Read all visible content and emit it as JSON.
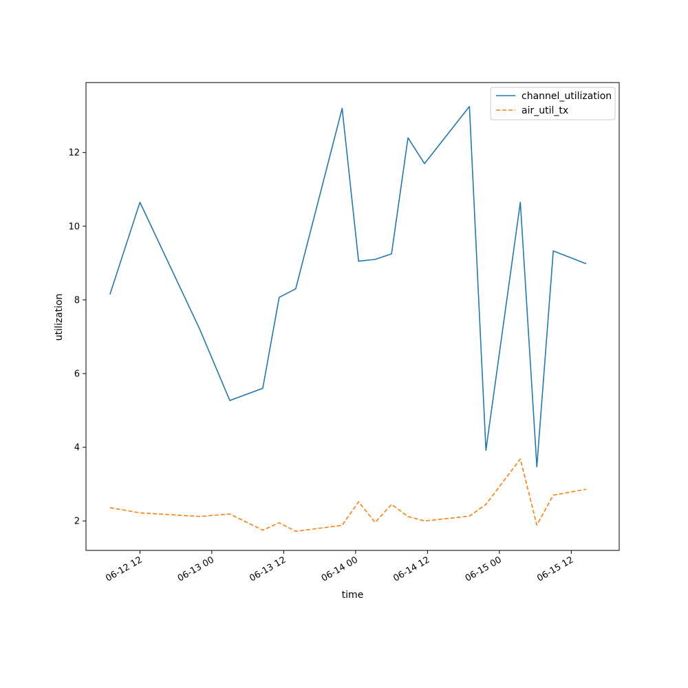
{
  "chart_data": {
    "type": "line",
    "title": "",
    "xlabel": "time",
    "ylabel": "utilization",
    "x_scale": "time",
    "x_range": [
      "2006-06-12T03:00",
      "2006-06-15T20:00"
    ],
    "y_range": [
      1.2,
      13.9
    ],
    "x_ticks": [
      {
        "value": "2006-06-12T12:00",
        "label": "06-12 12"
      },
      {
        "value": "2006-06-13T00:00",
        "label": "06-13 00"
      },
      {
        "value": "2006-06-13T12:00",
        "label": "06-13 12"
      },
      {
        "value": "2006-06-14T00:00",
        "label": "06-14 00"
      },
      {
        "value": "2006-06-14T12:00",
        "label": "06-14 12"
      },
      {
        "value": "2006-06-15T00:00",
        "label": "06-15 00"
      },
      {
        "value": "2006-06-15T12:00",
        "label": "06-15 12"
      }
    ],
    "y_ticks": [
      {
        "value": 2,
        "label": "2"
      },
      {
        "value": 4,
        "label": "4"
      },
      {
        "value": 6,
        "label": "6"
      },
      {
        "value": 8,
        "label": "8"
      },
      {
        "value": 10,
        "label": "10"
      },
      {
        "value": 12,
        "label": "12"
      }
    ],
    "grid": false,
    "legend_position": "top-right",
    "series": [
      {
        "name": "channel_utilization",
        "color": "#1f77b4",
        "style": "solid",
        "points": [
          {
            "x": "2006-06-12T07:00",
            "y": 8.15
          },
          {
            "x": "2006-06-12T12:00",
            "y": 10.65
          },
          {
            "x": "2006-06-12T22:00",
            "y": 7.2
          },
          {
            "x": "2006-06-13T03:00",
            "y": 5.27
          },
          {
            "x": "2006-06-13T08:30",
            "y": 5.6
          },
          {
            "x": "2006-06-13T11:15",
            "y": 8.07
          },
          {
            "x": "2006-06-13T14:00",
            "y": 8.3
          },
          {
            "x": "2006-06-13T21:45",
            "y": 13.2
          },
          {
            "x": "2006-06-14T00:30",
            "y": 9.05
          },
          {
            "x": "2006-06-14T03:15",
            "y": 9.1
          },
          {
            "x": "2006-06-14T06:00",
            "y": 9.25
          },
          {
            "x": "2006-06-14T08:45",
            "y": 12.4
          },
          {
            "x": "2006-06-14T11:30",
            "y": 11.7
          },
          {
            "x": "2006-06-14T19:00",
            "y": 13.25
          },
          {
            "x": "2006-06-14T21:45",
            "y": 3.92
          },
          {
            "x": "2006-06-15T03:30",
            "y": 10.65
          },
          {
            "x": "2006-06-15T06:15",
            "y": 3.47
          },
          {
            "x": "2006-06-15T09:00",
            "y": 9.33
          },
          {
            "x": "2006-06-15T14:30",
            "y": 8.98
          }
        ]
      },
      {
        "name": "air_util_tx",
        "color": "#ff7f0e",
        "style": "dashed",
        "points": [
          {
            "x": "2006-06-12T07:00",
            "y": 2.36
          },
          {
            "x": "2006-06-12T12:00",
            "y": 2.22
          },
          {
            "x": "2006-06-12T22:00",
            "y": 2.12
          },
          {
            "x": "2006-06-13T03:00",
            "y": 2.19
          },
          {
            "x": "2006-06-13T08:30",
            "y": 1.75
          },
          {
            "x": "2006-06-13T11:15",
            "y": 1.95
          },
          {
            "x": "2006-06-13T14:00",
            "y": 1.72
          },
          {
            "x": "2006-06-13T21:45",
            "y": 1.88
          },
          {
            "x": "2006-06-14T00:30",
            "y": 2.52
          },
          {
            "x": "2006-06-14T03:15",
            "y": 1.96
          },
          {
            "x": "2006-06-14T06:00",
            "y": 2.45
          },
          {
            "x": "2006-06-14T08:45",
            "y": 2.12
          },
          {
            "x": "2006-06-14T11:30",
            "y": 2.0
          },
          {
            "x": "2006-06-14T19:00",
            "y": 2.13
          },
          {
            "x": "2006-06-14T21:45",
            "y": 2.45
          },
          {
            "x": "2006-06-15T03:30",
            "y": 3.68
          },
          {
            "x": "2006-06-15T06:15",
            "y": 1.89
          },
          {
            "x": "2006-06-15T09:00",
            "y": 2.7
          },
          {
            "x": "2006-06-15T14:30",
            "y": 2.86
          }
        ]
      }
    ]
  }
}
